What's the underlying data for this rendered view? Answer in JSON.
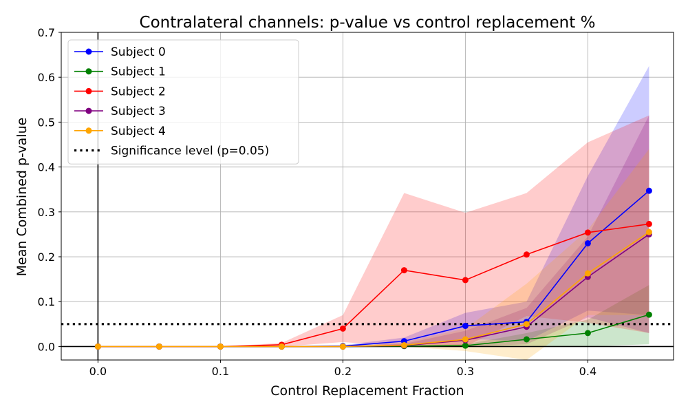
{
  "chart_data": {
    "type": "line",
    "title": "Contralateral channels: p-value vs control replacement %",
    "xlabel": "Control Replacement Fraction",
    "ylabel": "Mean Combined p-value",
    "xlim": [
      -0.03,
      0.47
    ],
    "ylim": [
      -0.03,
      0.7
    ],
    "xticks": [
      0.0,
      0.1,
      0.2,
      0.3,
      0.4
    ],
    "yticks": [
      0.0,
      0.1,
      0.2,
      0.3,
      0.4,
      0.5,
      0.6,
      0.7
    ],
    "grid": true,
    "legend_position": "top-left",
    "x": [
      0.0,
      0.05,
      0.1,
      0.15,
      0.2,
      0.25,
      0.3,
      0.35,
      0.4,
      0.45
    ],
    "series": [
      {
        "name": "Subject 0",
        "color": "#0000ff",
        "values": [
          0.0,
          0.0,
          0.0,
          0.0,
          0.001,
          0.012,
          0.046,
          0.055,
          0.23,
          0.347
        ],
        "upper": [
          0.0,
          0.0,
          0.0,
          0.0,
          0.003,
          0.02,
          0.075,
          0.1,
          0.38,
          0.625
        ],
        "lower": [
          0.0,
          0.0,
          0.0,
          0.0,
          0.0,
          0.003,
          0.017,
          0.012,
          0.08,
          0.07
        ]
      },
      {
        "name": "Subject 1",
        "color": "#008000",
        "values": [
          0.0,
          0.0,
          0.0,
          0.0,
          0.0,
          0.001,
          0.002,
          0.016,
          0.03,
          0.071
        ],
        "upper": [
          0.0,
          0.0,
          0.0,
          0.0,
          0.0,
          0.002,
          0.005,
          0.03,
          0.06,
          0.137
        ],
        "lower": [
          0.0,
          0.0,
          0.0,
          0.0,
          0.0,
          0.0,
          0.0,
          0.002,
          0.0,
          0.005
        ]
      },
      {
        "name": "Subject 2",
        "color": "#ff0000",
        "values": [
          0.0,
          0.0,
          0.0,
          0.004,
          0.04,
          0.17,
          0.148,
          0.205,
          0.254,
          0.273
        ],
        "upper": [
          0.0,
          0.0,
          0.0,
          0.008,
          0.07,
          0.342,
          0.298,
          0.342,
          0.455,
          0.515
        ],
        "lower": [
          0.0,
          0.0,
          0.0,
          0.0,
          0.01,
          0.0,
          0.0,
          0.068,
          0.053,
          0.03
        ]
      },
      {
        "name": "Subject 3",
        "color": "#800080",
        "values": [
          0.0,
          0.0,
          0.0,
          0.0,
          0.0,
          0.002,
          0.014,
          0.044,
          0.155,
          0.25
        ],
        "upper": [
          0.0,
          0.0,
          0.0,
          0.0,
          0.001,
          0.006,
          0.035,
          0.086,
          0.245,
          0.515
        ],
        "lower": [
          0.0,
          0.0,
          0.0,
          0.0,
          0.0,
          0.0,
          0.0,
          0.005,
          0.065,
          0.03
        ]
      },
      {
        "name": "Subject 4",
        "color": "#ffa500",
        "values": [
          0.0,
          0.0,
          0.0,
          0.0,
          0.0,
          0.003,
          0.016,
          0.05,
          0.163,
          0.255
        ],
        "upper": [
          0.0,
          0.0,
          0.0,
          0.0,
          0.002,
          0.009,
          0.04,
          0.14,
          0.26,
          0.44
        ],
        "lower": [
          0.0,
          0.0,
          0.0,
          0.0,
          0.0,
          0.0,
          -0.01,
          -0.03,
          0.07,
          0.07
        ]
      }
    ],
    "reference_line": {
      "name": "Significance level (p=0.05)",
      "y": 0.05,
      "color": "#000000",
      "style": "dotted"
    }
  }
}
